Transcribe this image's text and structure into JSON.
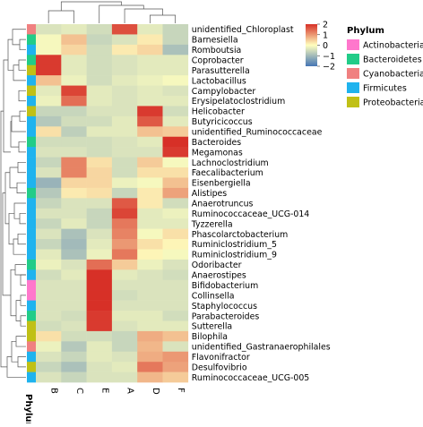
{
  "chart_data": {
    "type": "heatmap",
    "columns": [
      "B",
      "C",
      "E",
      "A",
      "D",
      "F"
    ],
    "rows": [
      "unidentified_Chloroplast",
      "Barnesiella",
      "Romboutsia",
      "Coprobacter",
      "Parasutterella",
      "Lactobacillus",
      "Campylobacter",
      "Erysipelatoclostridium",
      "Helicobacter",
      "Butyricicoccus",
      "unidentified_Ruminococcaceae",
      "Bacteroides",
      "Megamonas",
      "Lachnoclostridium",
      "Faecalibacterium",
      "Eisenbergiella",
      "Alistipes",
      "Anaerotruncus",
      "Ruminococcaceae_UCG-014",
      "Tyzzerella",
      "Phascolarctobacterium",
      "Ruminiclostridium_5",
      "Ruminiclostridium_9",
      "Odoribacter",
      "Anaerostipes",
      "Bifidobacterium",
      "Collinsella",
      "Staphylococcus",
      "Parabacteroides",
      "Sutterella",
      "Bilophila",
      "unidentified_Gastranaerophilales",
      "Flavonifractor",
      "Desulfovibrio",
      "Ruminococcaceae_UCG-005"
    ],
    "values": [
      [
        -0.4,
        -0.3,
        -0.5,
        1.7,
        -0.3,
        -0.6
      ],
      [
        -0.1,
        0.6,
        -0.6,
        -0.4,
        0.2,
        -0.6
      ],
      [
        -0.1,
        0.4,
        -0.5,
        0.2,
        0.4,
        -0.9
      ],
      [
        1.9,
        -0.3,
        -0.5,
        -0.4,
        -0.3,
        -0.3
      ],
      [
        1.9,
        -0.3,
        -0.5,
        -0.4,
        -0.3,
        -0.3
      ],
      [
        0.6,
        -0.2,
        -0.5,
        -0.3,
        -0.2,
        -0.1
      ],
      [
        -0.3,
        1.8,
        -0.3,
        -0.4,
        -0.3,
        -0.4
      ],
      [
        -0.2,
        1.4,
        -0.3,
        -0.4,
        -0.3,
        -0.3
      ],
      [
        -0.6,
        -0.6,
        -0.4,
        -0.4,
        1.9,
        -0.5
      ],
      [
        -0.8,
        -0.5,
        -0.5,
        -0.3,
        1.6,
        -0.3
      ],
      [
        0.3,
        -0.7,
        -0.3,
        -0.3,
        0.6,
        0.5
      ],
      [
        -0.5,
        -0.5,
        -0.5,
        -0.4,
        -0.3,
        2.0
      ],
      [
        -0.4,
        -0.4,
        -0.5,
        -0.4,
        -0.4,
        1.9
      ],
      [
        -0.6,
        1.2,
        0.3,
        -0.5,
        0.5,
        -0.1
      ],
      [
        -0.4,
        1.2,
        0.4,
        -0.5,
        0.3,
        0.3
      ],
      [
        -1.1,
        0.4,
        0.4,
        -0.2,
        -0.1,
        0.6
      ],
      [
        -0.8,
        0.2,
        0.3,
        -0.6,
        0.2,
        0.9
      ],
      [
        -0.6,
        -0.4,
        -0.4,
        1.6,
        0.2,
        -0.5
      ],
      [
        -0.4,
        -0.4,
        -0.6,
        1.8,
        -0.3,
        -0.2
      ],
      [
        -0.6,
        -0.3,
        -0.6,
        1.3,
        -0.3,
        -0.3
      ],
      [
        -0.4,
        -0.9,
        -0.4,
        1.2,
        -0.1,
        0.3
      ],
      [
        -0.6,
        -1.0,
        -0.3,
        1.0,
        0.3,
        0.1
      ],
      [
        -0.3,
        -0.9,
        -0.2,
        1.3,
        0.1,
        -0.1
      ],
      [
        -0.2,
        -0.4,
        1.4,
        0.5,
        -0.2,
        -0.4
      ],
      [
        -0.5,
        -0.3,
        2.0,
        -0.3,
        -0.4,
        -0.5
      ],
      [
        -0.4,
        -0.4,
        2.0,
        -0.4,
        -0.4,
        -0.4
      ],
      [
        -0.4,
        -0.4,
        2.0,
        -0.5,
        -0.4,
        -0.4
      ],
      [
        -0.4,
        -0.4,
        2.0,
        -0.4,
        -0.4,
        -0.4
      ],
      [
        -0.4,
        -0.5,
        1.9,
        -0.3,
        -0.3,
        -0.5
      ],
      [
        -0.5,
        -0.4,
        1.9,
        -0.4,
        -0.3,
        -0.3
      ],
      [
        0.3,
        -0.5,
        -0.5,
        -0.6,
        0.8,
        0.6
      ],
      [
        -0.2,
        -0.8,
        -0.3,
        -0.6,
        0.7,
        -0.4
      ],
      [
        -0.4,
        -0.6,
        -0.3,
        -0.4,
        0.8,
        1.0
      ],
      [
        -0.6,
        -0.9,
        -0.4,
        -0.3,
        1.3,
        0.9
      ],
      [
        -0.4,
        -0.6,
        -0.4,
        -0.4,
        0.7,
        0.5
      ]
    ],
    "phylum": [
      "Cyanobacteria",
      "Bacteroidetes",
      "Firmicutes",
      "Bacteroidetes",
      "Proteobacteria",
      "Firmicutes",
      "Proteobacteria",
      "Firmicutes",
      "Proteobacteria",
      "Firmicutes",
      "Firmicutes",
      "Bacteroidetes",
      "Firmicutes",
      "Firmicutes",
      "Firmicutes",
      "Firmicutes",
      "Bacteroidetes",
      "Firmicutes",
      "Firmicutes",
      "Firmicutes",
      "Firmicutes",
      "Firmicutes",
      "Firmicutes",
      "Bacteroidetes",
      "Firmicutes",
      "Actinobacteria",
      "Actinobacteria",
      "Firmicutes",
      "Bacteroidetes",
      "Proteobacteria",
      "Proteobacteria",
      "Cyanobacteria",
      "Firmicutes",
      "Proteobacteria",
      "Firmicutes"
    ],
    "annotation_label": "Phylum",
    "legend": {
      "title": "Phylum",
      "items": [
        {
          "name": "Actinobacteria",
          "color": "#ff77cc"
        },
        {
          "name": "Bacteroidetes",
          "color": "#22cc88"
        },
        {
          "name": "Cyanobacteria",
          "color": "#f08080"
        },
        {
          "name": "Firmicutes",
          "color": "#1fb3ee"
        },
        {
          "name": "Proteobacteria",
          "color": "#c0c016"
        }
      ]
    },
    "colorbar": {
      "range": [
        -2,
        2
      ],
      "ticks": [
        "2",
        "1",
        "0",
        "−1",
        "−2"
      ],
      "tick_values": [
        2,
        1,
        0,
        -1,
        -2
      ],
      "colors": {
        "low": "#4575b4",
        "mid": "#ffffbf",
        "high": "#d73027"
      }
    },
    "row_dendrogram": [
      [
        1,
        2,
        0.25
      ],
      [
        3,
        4,
        0.2
      ],
      [
        8,
        9,
        0.25
      ],
      [
        11,
        12,
        0.2
      ],
      [
        13,
        14,
        0.3
      ],
      [
        15,
        16,
        0.4
      ],
      [
        18,
        19,
        0.25
      ],
      [
        20,
        21,
        0.3
      ],
      [
        24,
        25,
        0.1
      ],
      [
        26,
        27,
        0.1
      ],
      [
        28,
        29,
        0.1
      ],
      [
        32,
        33,
        0.3
      ],
      [
        30,
        31,
        0.4
      ]
    ],
    "col_dendrogram": [
      [
        "B",
        "C"
      ],
      [
        "A",
        "D"
      ],
      [
        "D",
        "F"
      ]
    ]
  }
}
